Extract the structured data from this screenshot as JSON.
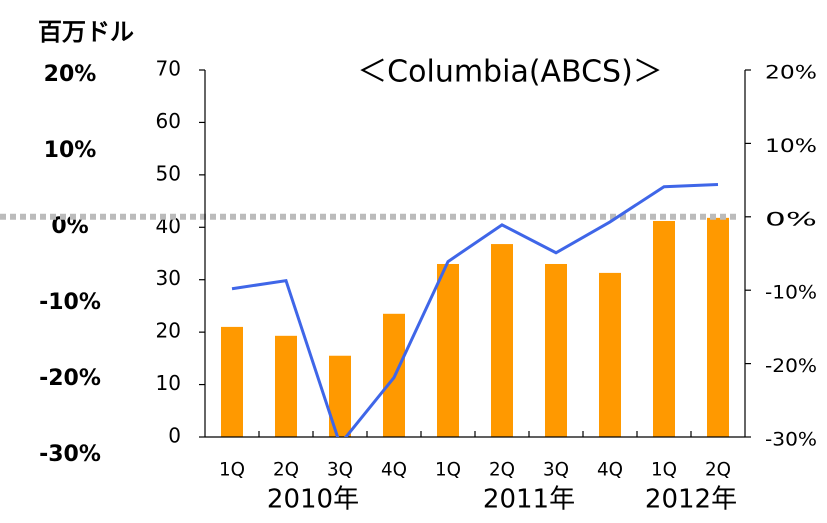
{
  "chart_data": {
    "type": "bar+line",
    "title": "＜Columbia(ABCS)＞",
    "y_axis_label": "百万ドル",
    "categories": [
      "1Q",
      "2Q",
      "3Q",
      "4Q",
      "1Q",
      "2Q",
      "3Q",
      "4Q",
      "1Q",
      "2Q"
    ],
    "groups": [
      "2010年",
      "2011年",
      "2012年"
    ],
    "series": [
      {
        "type": "bar",
        "color": "#ff9900",
        "values": [
          21,
          19.3,
          15.5,
          23.5,
          33,
          36.8,
          33,
          31.3,
          41.2,
          41.8
        ]
      },
      {
        "type": "line",
        "axis": "y2",
        "color": "#3f66e8",
        "values": [
          -9.8,
          -8.7,
          -31,
          -21.9,
          -6.1,
          -1.1,
          -4.9,
          -0.7,
          4.1,
          4.4
        ]
      }
    ],
    "ylim": [
      0,
      70
    ],
    "yticks": [
      0,
      10,
      20,
      30,
      40,
      50,
      60,
      70
    ],
    "y2lim": [
      -30,
      20
    ],
    "y2ticks": [
      {
        "value": -30,
        "label": "-30%"
      },
      {
        "value": -20,
        "label": "-20%"
      },
      {
        "value": -10,
        "label": "-10%"
      },
      {
        "value": 0,
        "label": "0%"
      },
      {
        "value": 10,
        "label": "10%"
      },
      {
        "value": 20,
        "label": "20%"
      }
    ],
    "y2_reference_line": 0,
    "y3lim": [
      -30,
      20
    ],
    "y3ticks": [
      {
        "value": -30,
        "label": "-30%"
      },
      {
        "value": -20,
        "label": "-20%"
      },
      {
        "value": -10,
        "label": "-10%"
      },
      {
        "value": 0,
        "label": "0%"
      },
      {
        "value": 10,
        "label": "10%"
      },
      {
        "value": 20,
        "label": "20%"
      }
    ]
  }
}
